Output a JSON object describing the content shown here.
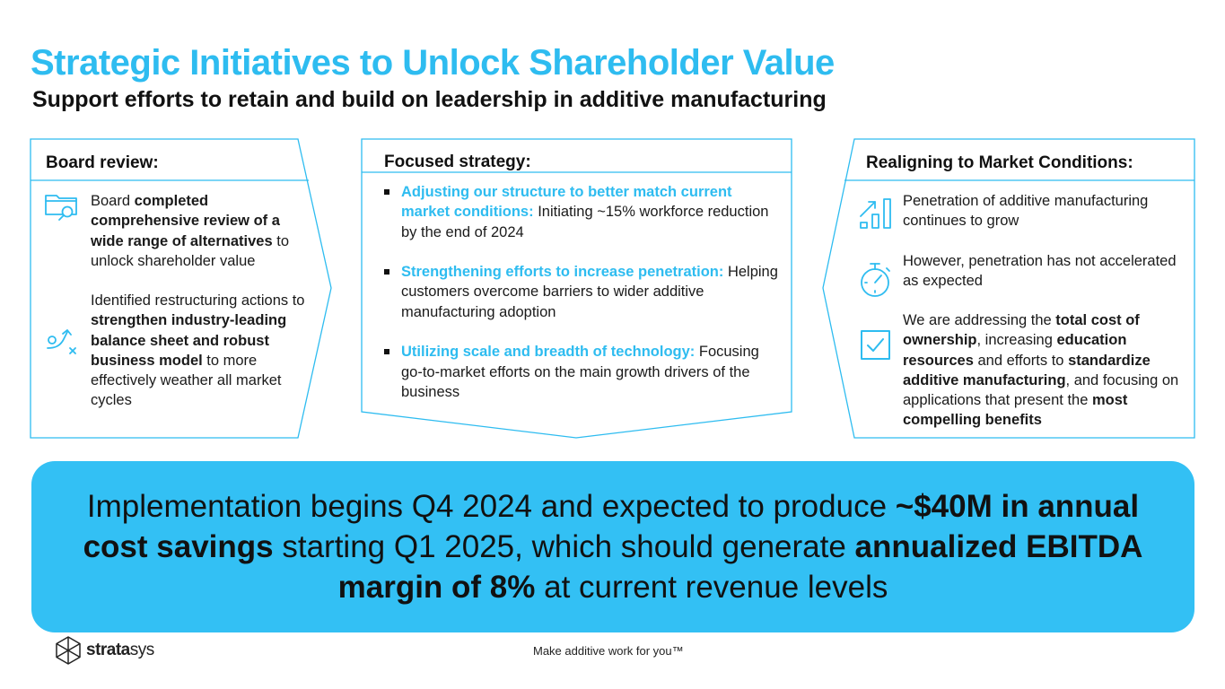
{
  "title": "Strategic Initiatives to Unlock Shareholder Value",
  "subtitle": "Support efforts to retain and build on leadership in additive manufacturing",
  "board": {
    "heading": "Board review:",
    "item1": {
      "pre": "Board ",
      "bold": "completed comprehensive review of a wide range of alternatives",
      "post": " to unlock shareholder value"
    },
    "item2": {
      "pre": "Identified restructuring actions to ",
      "bold": "strengthen industry-leading balance sheet and robust business model",
      "post": " to more effectively weather all market cycles"
    }
  },
  "strategy": {
    "heading": "Focused strategy:",
    "bullets": [
      {
        "highlight": "Adjusting our structure to better match current market conditions:",
        "text": " Initiating  ~15% workforce reduction by the end of 2024"
      },
      {
        "highlight": "Strengthening efforts to increase  penetration:",
        "text": " Helping customers overcome barriers to wider additive manufacturing adoption"
      },
      {
        "highlight": "Utilizing scale and breadth of technology:",
        "text": " Focusing go-to-market efforts on the main growth drivers of the business"
      }
    ]
  },
  "market": {
    "heading": "Realigning to Market Conditions:",
    "item1": "Penetration of additive manufacturing continues to grow",
    "item2": "However, penetration has not accelerated as expected",
    "item3": {
      "p1": "We are addressing the ",
      "b1": "total cost of ownership",
      "p2": ", increasing ",
      "b2": "education resources",
      "p3": " and efforts to ",
      "b3": "standardize additive manufacturing",
      "p4": ", and focusing on applications that present the ",
      "b4": "most compelling benefits"
    }
  },
  "banner": {
    "p1": "Implementation begins Q4 2024 and expected to produce ",
    "b1": "~$40M in annual cost savings",
    "p2": " starting Q1 2025, which should generate ",
    "b2": "annualized EBITDA margin of 8%",
    "p3": " at current revenue levels"
  },
  "footer": {
    "logo_bold": "strata",
    "logo_regular": "sys",
    "tagline": "Make additive work for you™"
  },
  "icons": {
    "board_1": "folder-search-icon",
    "board_2": "strategy-path-icon",
    "market_1": "growth-chart-icon",
    "market_2": "stopwatch-icon",
    "market_3": "checkbox-icon",
    "logo": "stratasys-logo-icon"
  },
  "colors": {
    "accent": "#2ebcf0",
    "banner": "#33c0f4",
    "text": "#111111"
  }
}
